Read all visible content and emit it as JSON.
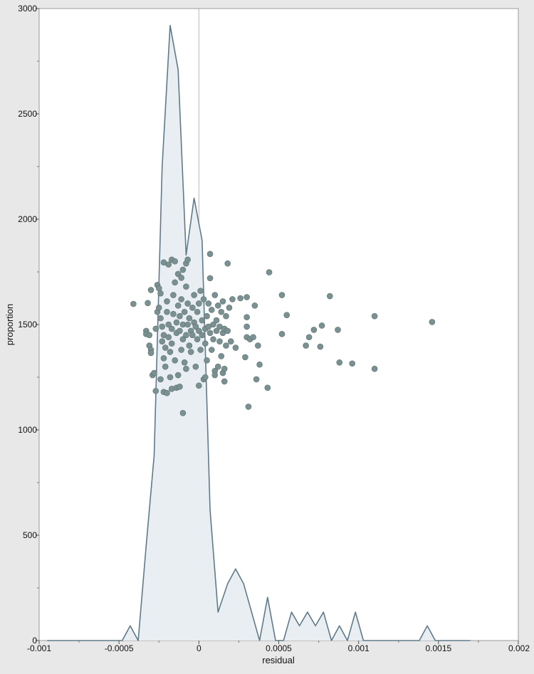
{
  "chart_data": {
    "type": "area",
    "title": "",
    "xlabel": "residual",
    "ylabel": "proportion",
    "xlim": [
      -0.001,
      0.002
    ],
    "ylim": [
      0,
      3000
    ],
    "x_ticks": [
      "-0.001",
      "-0.0005",
      "0",
      "0.0005",
      "0.001",
      "0.0015",
      "0.002"
    ],
    "x_tick_values": [
      -0.001,
      -0.0005,
      0,
      0.0005,
      0.001,
      0.0015,
      0.002
    ],
    "y_ticks": [
      "0",
      "500",
      "1000",
      "1500",
      "2000",
      "2500",
      "3000"
    ],
    "y_tick_values": [
      0,
      500,
      1000,
      1500,
      2000,
      2500,
      3000
    ],
    "reference_line_x": 0,
    "grid": false,
    "colors": {
      "area_fill": "#e9eef2",
      "area_line": "#607a8a",
      "points": "#7b9090",
      "point_edge": "#5c7272",
      "reference_line": "#b8b8b8",
      "plot_background": "#ffffff",
      "page_background": "#e8e8e8"
    },
    "series": [
      {
        "type": "area",
        "x": [
          -0.00095,
          -0.00048,
          -0.00043,
          -0.00038,
          -0.00033,
          -0.00028,
          -0.00023,
          -0.00018,
          -0.00013,
          -8e-05,
          -3e-05,
          2e-05,
          7e-05,
          0.00012,
          0.00018,
          0.00023,
          0.00028,
          0.00033,
          0.00038,
          0.00043,
          0.00048,
          0.00053,
          0.00058,
          0.00063,
          0.00068,
          0.00073,
          0.00078,
          0.00083,
          0.00088,
          0.00093,
          0.00098,
          0.00103,
          0.00108,
          0.00113,
          0.00118,
          0.00138,
          0.00143,
          0.00148,
          0.00153,
          0.0017
        ],
        "y": [
          0,
          0,
          70,
          0,
          450,
          880,
          2250,
          2920,
          2710,
          1830,
          2100,
          1900,
          620,
          135,
          270,
          340,
          270,
          135,
          0,
          205,
          0,
          0,
          135,
          70,
          135,
          70,
          135,
          0,
          70,
          0,
          135,
          0,
          0,
          0,
          0,
          0,
          70,
          0,
          0,
          0
        ]
      },
      {
        "type": "scatter",
        "points": [
          [
            -0.00041,
            1598
          ],
          [
            -0.00032,
            1602
          ],
          [
            -0.0003,
            1664
          ],
          [
            -0.00026,
            1688
          ],
          [
            -0.00025,
            1672
          ],
          [
            -0.00024,
            1648
          ],
          [
            -0.00022,
            1795
          ],
          [
            -0.00019,
            1785
          ],
          [
            -0.00017,
            1808
          ],
          [
            -0.00015,
            1800
          ],
          [
            -0.00013,
            1740
          ],
          [
            -0.00011,
            1722
          ],
          [
            -0.0001,
            1760
          ],
          [
            -8e-05,
            1790
          ],
          [
            -7e-05,
            1808
          ],
          [
            7e-05,
            1835
          ],
          [
            0.00018,
            1790
          ],
          [
            0.00044,
            1748
          ],
          [
            -0.00033,
            1470
          ],
          [
            -0.00033,
            1455
          ],
          [
            -0.00031,
            1450
          ],
          [
            -0.00031,
            1400
          ],
          [
            -0.0003,
            1380
          ],
          [
            -0.0003,
            1365
          ],
          [
            -0.00029,
            1260
          ],
          [
            -0.00028,
            1270
          ],
          [
            -0.00027,
            1480
          ],
          [
            -0.00026,
            1560
          ],
          [
            -0.00025,
            1580
          ],
          [
            -0.00024,
            1530
          ],
          [
            -0.00023,
            1490
          ],
          [
            -0.00023,
            1420
          ],
          [
            -0.00022,
            1450
          ],
          [
            -0.00022,
            1340
          ],
          [
            -0.00021,
            1390
          ],
          [
            -0.00021,
            1300
          ],
          [
            -0.0002,
            1610
          ],
          [
            -0.0002,
            1560
          ],
          [
            -0.00019,
            1500
          ],
          [
            -0.00019,
            1440
          ],
          [
            -0.00018,
            1370
          ],
          [
            -0.00018,
            1250
          ],
          [
            -0.00017,
            1480
          ],
          [
            -0.00017,
            1410
          ],
          [
            -0.00016,
            1640
          ],
          [
            -0.00016,
            1550
          ],
          [
            -0.00015,
            1700
          ],
          [
            -0.00015,
            1330
          ],
          [
            -0.00014,
            1510
          ],
          [
            -0.00014,
            1460
          ],
          [
            -0.00013,
            1590
          ],
          [
            -0.00013,
            1260
          ],
          [
            -0.00012,
            1540
          ],
          [
            -0.00012,
            1470
          ],
          [
            -0.00011,
            1620
          ],
          [
            -0.00011,
            1380
          ],
          [
            -0.0001,
            1500
          ],
          [
            -0.0001,
            1430
          ],
          [
            -9e-05,
            1560
          ],
          [
            -9e-05,
            1320
          ],
          [
            -8e-05,
            1680
          ],
          [
            -8e-05,
            1450
          ],
          [
            -7e-05,
            1600
          ],
          [
            -7e-05,
            1500
          ],
          [
            -6e-05,
            1530
          ],
          [
            -6e-05,
            1400
          ],
          [
            -5e-05,
            1470
          ],
          [
            -5e-05,
            1370
          ],
          [
            -4e-05,
            1580
          ],
          [
            -4e-05,
            1450
          ],
          [
            -3e-05,
            1640
          ],
          [
            -3e-05,
            1510
          ],
          [
            -2e-05,
            1490
          ],
          [
            -2e-05,
            1300
          ],
          [
            -1e-05,
            1560
          ],
          [
            -1e-05,
            1430
          ],
          [
            0.0,
            1600
          ],
          [
            0.0,
            1470
          ],
          [
            1e-05,
            1660
          ],
          [
            1e-05,
            1380
          ],
          [
            2e-05,
            1520
          ],
          [
            2e-05,
            1450
          ],
          [
            3e-05,
            1620
          ],
          [
            3e-05,
            1240
          ],
          [
            4e-05,
            1480
          ],
          [
            4e-05,
            1410
          ],
          [
            5e-05,
            1540
          ],
          [
            5e-05,
            1330
          ],
          [
            6e-05,
            1600
          ],
          [
            6e-05,
            1490
          ],
          [
            7e-05,
            1720
          ],
          [
            7e-05,
            1460
          ],
          [
            8e-05,
            1570
          ],
          [
            8e-05,
            1380
          ],
          [
            9e-05,
            1500
          ],
          [
            9e-05,
            1430
          ],
          [
            0.0001,
            1640
          ],
          [
            0.0001,
            1280
          ],
          [
            0.00011,
            1520
          ],
          [
            0.00011,
            1470
          ],
          [
            0.00012,
            1590
          ],
          [
            0.00012,
            1300
          ],
          [
            0.00013,
            1490
          ],
          [
            0.00013,
            1420
          ],
          [
            0.00014,
            1560
          ],
          [
            0.00014,
            1350
          ],
          [
            0.00015,
            1610
          ],
          [
            0.00015,
            1460
          ],
          [
            0.00016,
            1480
          ],
          [
            0.00016,
            1230
          ],
          [
            0.00017,
            1540
          ],
          [
            0.00017,
            1400
          ],
          [
            0.00018,
            1470
          ],
          [
            0.00019,
            1580
          ],
          [
            0.0002,
            1420
          ],
          [
            0.00021,
            1620
          ],
          [
            0.00023,
            1390
          ],
          [
            0.00026,
            1625
          ],
          [
            0.00029,
            1345
          ],
          [
            0.0003,
            1630
          ],
          [
            0.0003,
            1535
          ],
          [
            0.0003,
            1490
          ],
          [
            0.0003,
            1440
          ],
          [
            0.00031,
            1110
          ],
          [
            0.00032,
            1430
          ],
          [
            0.00034,
            1440
          ],
          [
            0.00035,
            1590
          ],
          [
            0.00036,
            1240
          ],
          [
            0.00037,
            1400
          ],
          [
            0.00038,
            1310
          ],
          [
            0.00043,
            1200
          ],
          [
            -0.00027,
            1185
          ],
          [
            -0.00024,
            1240
          ],
          [
            -0.00022,
            1180
          ],
          [
            -0.0002,
            1175
          ],
          [
            -0.00017,
            1195
          ],
          [
            -0.00014,
            1200
          ],
          [
            -0.00012,
            1205
          ],
          [
            -0.0001,
            1080
          ],
          [
            -8e-05,
            1290
          ],
          [
            0.0,
            1210
          ],
          [
            4e-05,
            1250
          ],
          [
            0.0001,
            1260
          ],
          [
            0.00015,
            1270
          ],
          [
            0.00016,
            1290
          ],
          [
            0.00052,
            1640
          ],
          [
            0.00052,
            1455
          ],
          [
            0.00055,
            1545
          ],
          [
            0.00067,
            1400
          ],
          [
            0.00069,
            1440
          ],
          [
            0.00072,
            1475
          ],
          [
            0.00076,
            1395
          ],
          [
            0.00077,
            1495
          ],
          [
            0.00082,
            1635
          ],
          [
            0.00087,
            1475
          ],
          [
            0.00088,
            1320
          ],
          [
            0.00096,
            1315
          ],
          [
            0.0011,
            1540
          ],
          [
            0.0011,
            1290
          ],
          [
            0.00146,
            1512
          ]
        ]
      }
    ]
  }
}
